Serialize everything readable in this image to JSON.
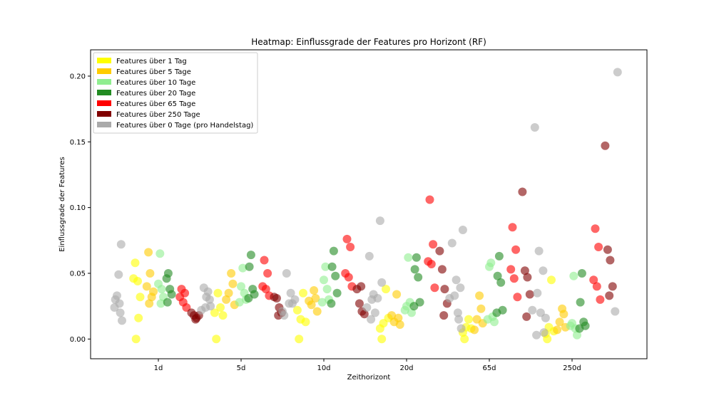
{
  "chart_data": {
    "type": "scatter",
    "title": "Heatmap: Einflussgrade der Features pro Horizont (RF)",
    "xlabel": "Zeithorizont",
    "ylabel": "Einflussgrade der Features",
    "categories": [
      "1d",
      "5d",
      "10d",
      "20d",
      "65d",
      "250d"
    ],
    "ylim": [
      -0.015,
      0.22
    ],
    "yticks": [
      0.0,
      0.05,
      0.1,
      0.15,
      0.2
    ],
    "ytick_labels": [
      "0.00",
      "0.05",
      "0.10",
      "0.15",
      "0.20"
    ],
    "grid": false,
    "legend_position": "upper left",
    "series": [
      {
        "name": "Features über 1 Tag",
        "color": "#ffff00",
        "points": [
          [
            -0.3,
            0.046
          ],
          [
            -0.28,
            0.058
          ],
          [
            -0.25,
            0.044
          ],
          [
            -0.27,
            0.0
          ],
          [
            -0.24,
            0.016
          ],
          [
            -0.22,
            0.032
          ],
          [
            0.68,
            0.02
          ],
          [
            0.72,
            0.035
          ],
          [
            0.75,
            0.024
          ],
          [
            0.7,
            0.0
          ],
          [
            0.78,
            0.018
          ],
          [
            1.68,
            0.022
          ],
          [
            1.72,
            0.015
          ],
          [
            1.75,
            0.035
          ],
          [
            1.7,
            0.0
          ],
          [
            1.78,
            0.013
          ],
          [
            2.68,
            0.008
          ],
          [
            2.72,
            0.012
          ],
          [
            2.75,
            0.038
          ],
          [
            2.7,
            0.0
          ],
          [
            2.78,
            0.016
          ],
          [
            3.68,
            0.005
          ],
          [
            3.72,
            0.009
          ],
          [
            3.75,
            0.015
          ],
          [
            3.7,
            0.0
          ],
          [
            3.78,
            0.008
          ],
          [
            4.68,
            0.004
          ],
          [
            4.72,
            0.009
          ],
          [
            4.75,
            0.045
          ],
          [
            4.7,
            0.0
          ],
          [
            4.78,
            0.006
          ]
        ]
      },
      {
        "name": "Features über 5 Tage",
        "color": "#ffcc00",
        "points": [
          [
            -0.12,
            0.066
          ],
          [
            -0.1,
            0.05
          ],
          [
            -0.14,
            0.04
          ],
          [
            -0.08,
            0.032
          ],
          [
            -0.11,
            0.027
          ],
          [
            -0.06,
            0.036
          ],
          [
            0.88,
            0.05
          ],
          [
            0.9,
            0.042
          ],
          [
            0.85,
            0.035
          ],
          [
            0.92,
            0.026
          ],
          [
            0.82,
            0.03
          ],
          [
            1.88,
            0.037
          ],
          [
            1.9,
            0.031
          ],
          [
            1.85,
            0.026
          ],
          [
            1.92,
            0.021
          ],
          [
            1.82,
            0.029
          ],
          [
            2.88,
            0.034
          ],
          [
            2.9,
            0.016
          ],
          [
            2.85,
            0.013
          ],
          [
            2.92,
            0.011
          ],
          [
            2.82,
            0.018
          ],
          [
            3.88,
            0.033
          ],
          [
            3.9,
            0.023
          ],
          [
            3.85,
            0.015
          ],
          [
            3.92,
            0.012
          ],
          [
            3.82,
            0.007
          ],
          [
            4.88,
            0.023
          ],
          [
            4.9,
            0.019
          ],
          [
            4.85,
            0.013
          ],
          [
            4.92,
            0.009
          ],
          [
            4.82,
            0.007
          ]
        ]
      },
      {
        "name": "Features über 10 Tage",
        "color": "#90ee90",
        "points": [
          [
            0.02,
            0.065
          ],
          [
            0.0,
            0.042
          ],
          [
            0.04,
            0.038
          ],
          [
            0.06,
            0.032
          ],
          [
            0.03,
            0.027
          ],
          [
            1.02,
            0.054
          ],
          [
            1.0,
            0.04
          ],
          [
            1.04,
            0.035
          ],
          [
            1.06,
            0.03
          ],
          [
            0.98,
            0.028
          ],
          [
            2.02,
            0.055
          ],
          [
            2.0,
            0.045
          ],
          [
            2.04,
            0.038
          ],
          [
            2.06,
            0.03
          ],
          [
            1.98,
            0.028
          ],
          [
            3.02,
            0.062
          ],
          [
            3.0,
            0.025
          ],
          [
            3.04,
            0.028
          ],
          [
            3.06,
            0.02
          ],
          [
            2.98,
            0.022
          ],
          [
            4.02,
            0.058
          ],
          [
            4.0,
            0.055
          ],
          [
            4.04,
            0.017
          ],
          [
            4.06,
            0.013
          ],
          [
            3.98,
            0.015
          ],
          [
            5.02,
            0.048
          ],
          [
            5.0,
            0.012
          ],
          [
            5.04,
            0.008
          ],
          [
            5.06,
            0.003
          ],
          [
            4.98,
            0.01
          ]
        ]
      },
      {
        "name": "Features über 20 Tage",
        "color": "#228b22",
        "points": [
          [
            0.12,
            0.05
          ],
          [
            0.1,
            0.046
          ],
          [
            0.14,
            0.038
          ],
          [
            0.16,
            0.034
          ],
          [
            0.11,
            0.028
          ],
          [
            1.12,
            0.064
          ],
          [
            1.1,
            0.055
          ],
          [
            1.14,
            0.038
          ],
          [
            1.16,
            0.034
          ],
          [
            1.09,
            0.031
          ],
          [
            2.12,
            0.067
          ],
          [
            2.1,
            0.055
          ],
          [
            2.14,
            0.048
          ],
          [
            2.16,
            0.035
          ],
          [
            2.09,
            0.027
          ],
          [
            3.12,
            0.062
          ],
          [
            3.1,
            0.053
          ],
          [
            3.14,
            0.047
          ],
          [
            3.16,
            0.028
          ],
          [
            3.09,
            0.025
          ],
          [
            4.12,
            0.063
          ],
          [
            4.1,
            0.048
          ],
          [
            4.14,
            0.043
          ],
          [
            4.16,
            0.022
          ],
          [
            4.09,
            0.02
          ],
          [
            5.12,
            0.05
          ],
          [
            5.1,
            0.028
          ],
          [
            5.14,
            0.013
          ],
          [
            5.16,
            0.01
          ],
          [
            5.09,
            0.008
          ]
        ]
      },
      {
        "name": "Features über 65 Tage",
        "color": "#ff0000",
        "points": [
          [
            0.28,
            0.038
          ],
          [
            0.32,
            0.035
          ],
          [
            0.26,
            0.032
          ],
          [
            0.3,
            0.028
          ],
          [
            0.34,
            0.024
          ],
          [
            1.28,
            0.06
          ],
          [
            1.32,
            0.05
          ],
          [
            1.26,
            0.04
          ],
          [
            1.3,
            0.038
          ],
          [
            1.34,
            0.033
          ],
          [
            2.28,
            0.076
          ],
          [
            2.32,
            0.07
          ],
          [
            2.26,
            0.05
          ],
          [
            2.3,
            0.047
          ],
          [
            2.34,
            0.04
          ],
          [
            3.28,
            0.106
          ],
          [
            3.32,
            0.072
          ],
          [
            3.26,
            0.059
          ],
          [
            3.3,
            0.057
          ],
          [
            3.34,
            0.039
          ],
          [
            4.28,
            0.085
          ],
          [
            4.32,
            0.068
          ],
          [
            4.26,
            0.053
          ],
          [
            4.3,
            0.046
          ],
          [
            4.34,
            0.032
          ],
          [
            5.28,
            0.084
          ],
          [
            5.32,
            0.07
          ],
          [
            5.26,
            0.045
          ],
          [
            5.3,
            0.04
          ],
          [
            5.34,
            0.03
          ]
        ]
      },
      {
        "name": "Features über 250 Tage",
        "color": "#800000",
        "points": [
          [
            0.4,
            0.02
          ],
          [
            0.43,
            0.018
          ],
          [
            0.46,
            0.016
          ],
          [
            0.49,
            0.018
          ],
          [
            0.45,
            0.015
          ],
          [
            1.4,
            0.032
          ],
          [
            1.43,
            0.031
          ],
          [
            1.46,
            0.024
          ],
          [
            1.49,
            0.02
          ],
          [
            1.45,
            0.018
          ],
          [
            2.4,
            0.038
          ],
          [
            2.43,
            0.027
          ],
          [
            2.46,
            0.021
          ],
          [
            2.49,
            0.019
          ],
          [
            2.45,
            0.04
          ],
          [
            3.4,
            0.067
          ],
          [
            3.43,
            0.053
          ],
          [
            3.46,
            0.038
          ],
          [
            3.49,
            0.027
          ],
          [
            3.45,
            0.018
          ],
          [
            4.4,
            0.112
          ],
          [
            4.43,
            0.052
          ],
          [
            4.46,
            0.047
          ],
          [
            4.49,
            0.034
          ],
          [
            4.45,
            0.017
          ],
          [
            5.4,
            0.147
          ],
          [
            5.43,
            0.068
          ],
          [
            5.46,
            0.06
          ],
          [
            5.49,
            0.04
          ],
          [
            5.45,
            0.033
          ]
        ]
      },
      {
        "name": "Features über 0 Tage (pro Handelstag)",
        "color": "#aaaaaa",
        "points": [
          [
            -0.45,
            0.072
          ],
          [
            -0.48,
            0.049
          ],
          [
            -0.5,
            0.033
          ],
          [
            -0.52,
            0.03
          ],
          [
            -0.47,
            0.027
          ],
          [
            -0.53,
            0.024
          ],
          [
            -0.46,
            0.02
          ],
          [
            -0.44,
            0.014
          ],
          [
            0.55,
            0.039
          ],
          [
            0.6,
            0.036
          ],
          [
            0.58,
            0.032
          ],
          [
            0.62,
            0.03
          ],
          [
            0.57,
            0.024
          ],
          [
            0.52,
            0.022
          ],
          [
            0.63,
            0.025
          ],
          [
            1.55,
            0.05
          ],
          [
            1.6,
            0.035
          ],
          [
            1.65,
            0.03
          ],
          [
            1.58,
            0.027
          ],
          [
            1.52,
            0.018
          ],
          [
            1.62,
            0.027
          ],
          [
            1.5,
            0.021
          ],
          [
            2.55,
            0.063
          ],
          [
            2.6,
            0.034
          ],
          [
            2.65,
            0.031
          ],
          [
            2.58,
            0.03
          ],
          [
            2.52,
            0.024
          ],
          [
            2.62,
            0.02
          ],
          [
            2.68,
            0.09
          ],
          [
            2.7,
            0.043
          ],
          [
            2.57,
            0.015
          ],
          [
            3.55,
            0.073
          ],
          [
            3.6,
            0.045
          ],
          [
            3.65,
            0.039
          ],
          [
            3.58,
            0.033
          ],
          [
            3.52,
            0.031
          ],
          [
            3.62,
            0.02
          ],
          [
            3.68,
            0.083
          ],
          [
            3.63,
            0.015
          ],
          [
            3.66,
            0.008
          ],
          [
            4.55,
            0.161
          ],
          [
            4.6,
            0.067
          ],
          [
            4.65,
            0.052
          ],
          [
            4.58,
            0.035
          ],
          [
            4.52,
            0.022
          ],
          [
            4.62,
            0.02
          ],
          [
            4.57,
            0.003
          ],
          [
            4.68,
            0.016
          ],
          [
            4.66,
            0.005
          ],
          [
            5.55,
            0.203
          ],
          [
            5.52,
            0.021
          ]
        ]
      }
    ]
  }
}
